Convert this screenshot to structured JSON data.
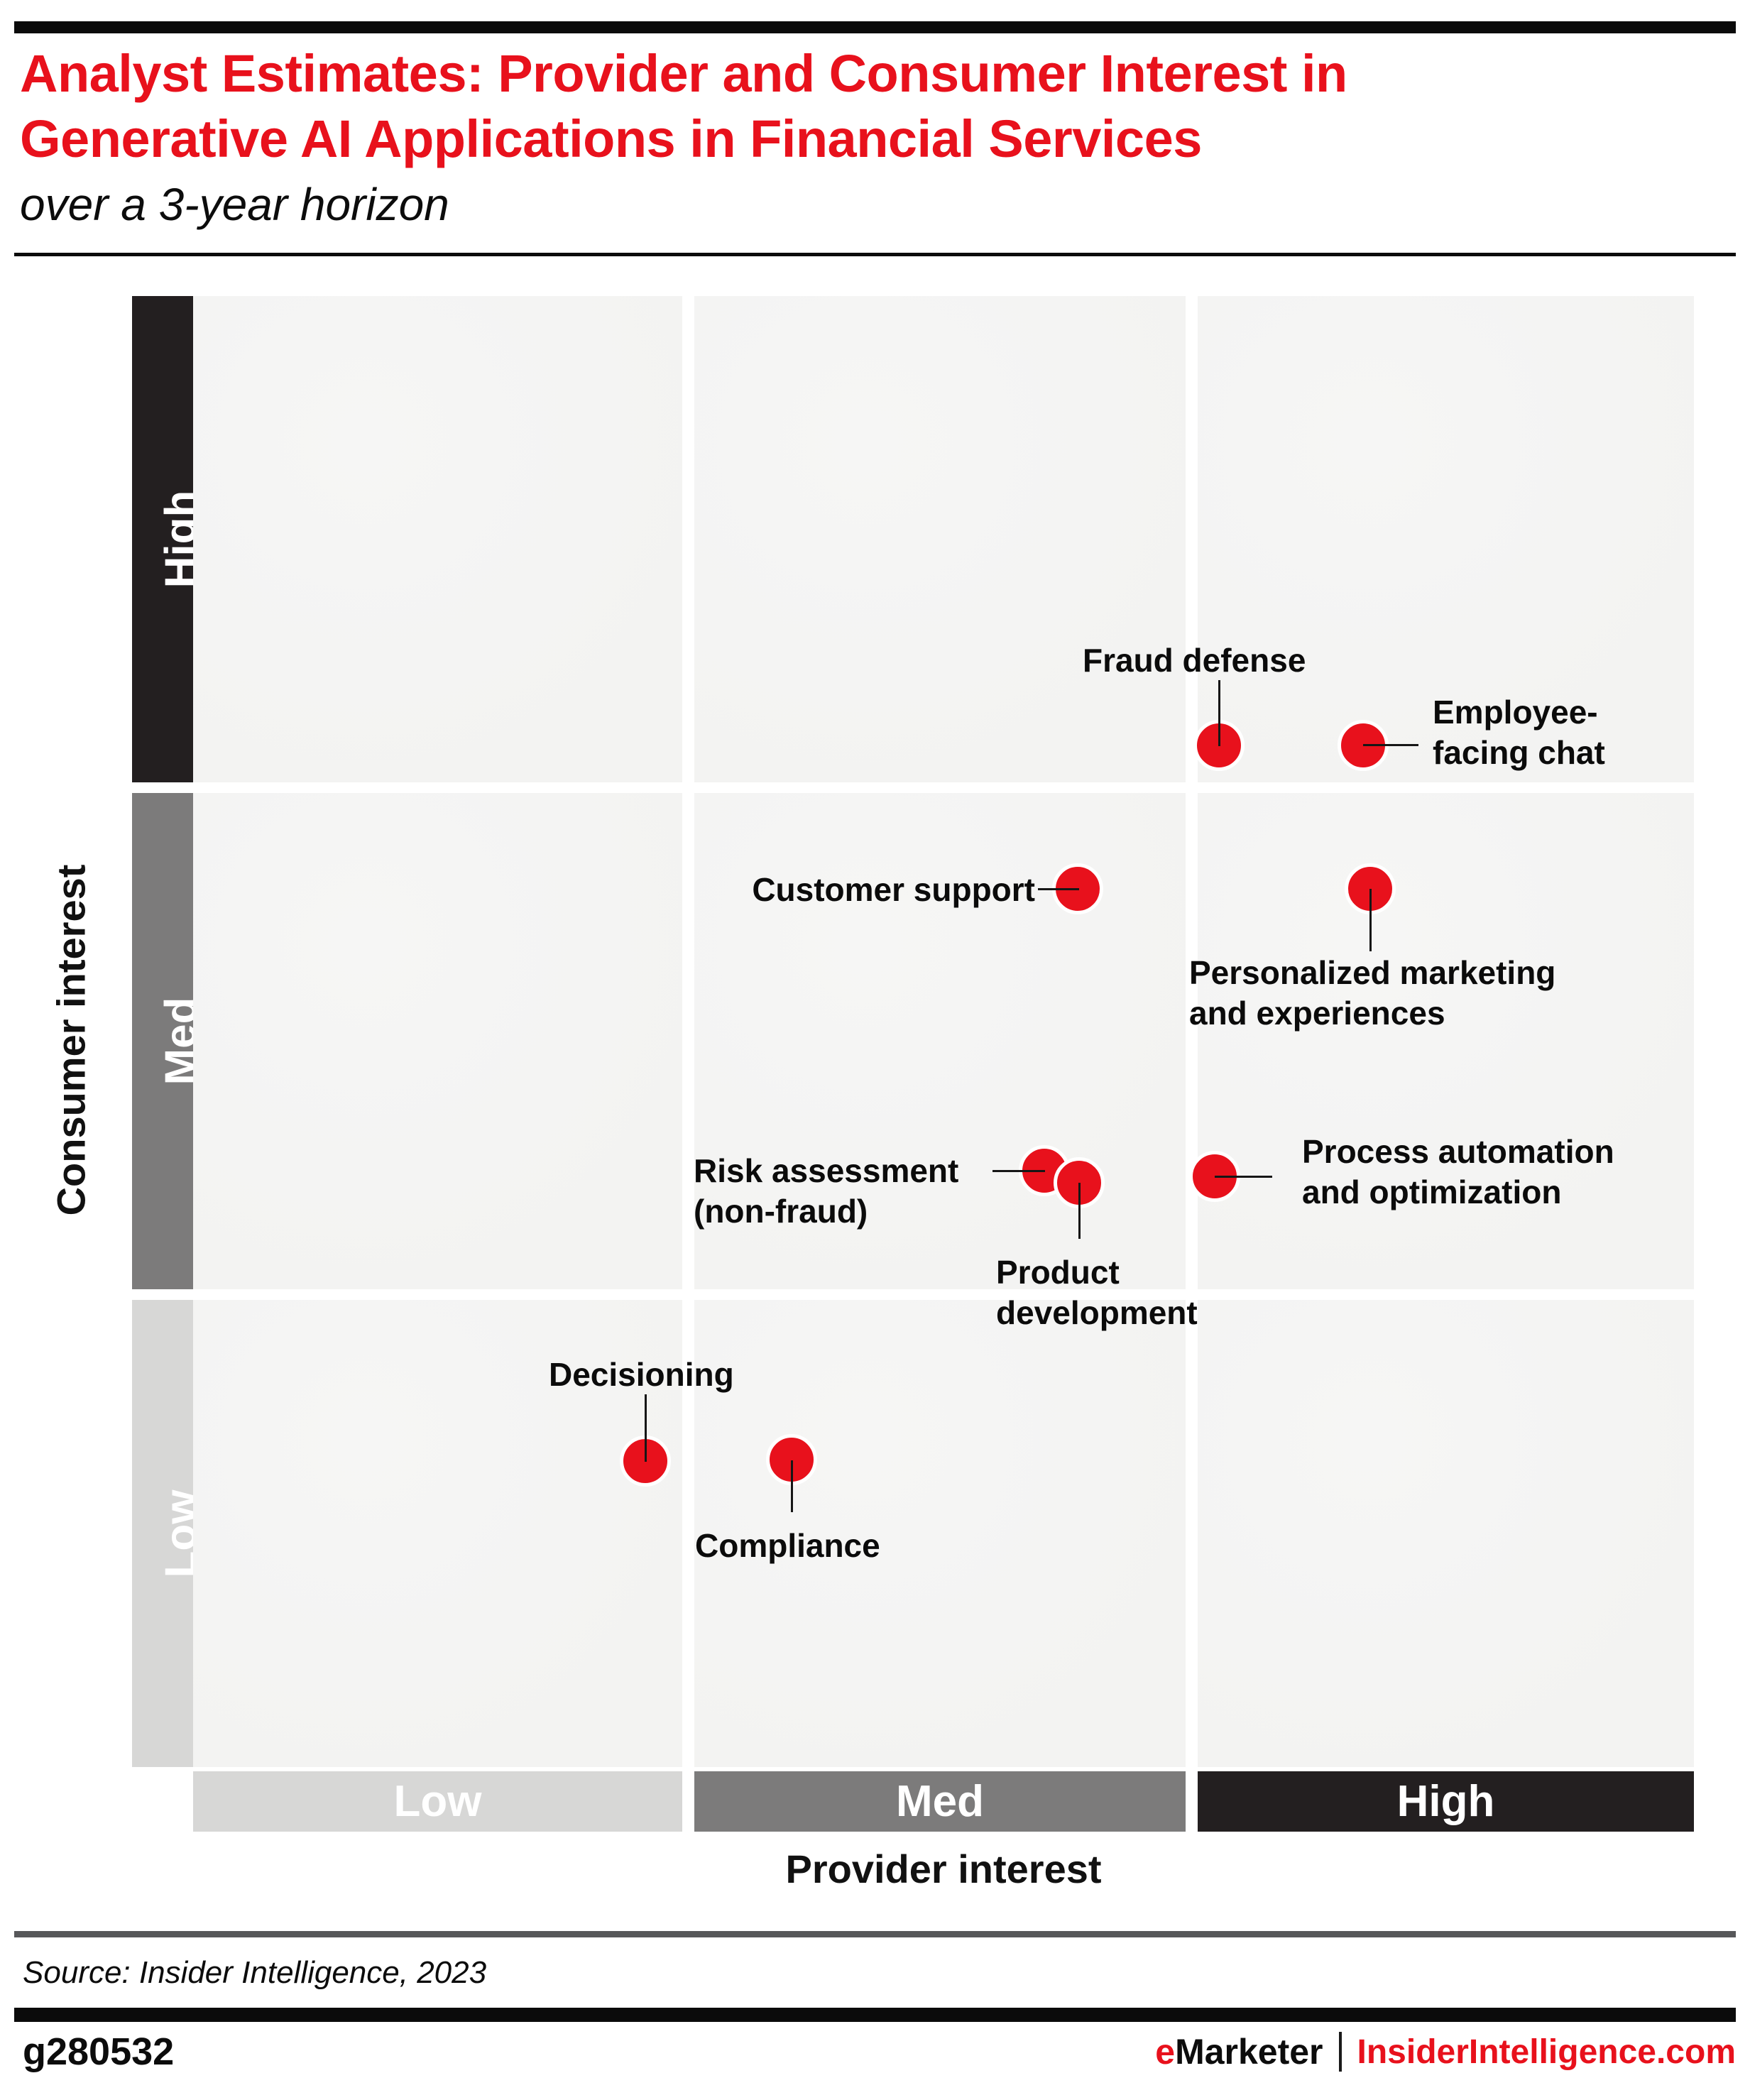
{
  "header": {
    "title_line1": "Analyst Estimates: Provider and Consumer Interest in",
    "title_line2": "Generative AI Applications in Financial Services",
    "subtitle": "over a 3-year horizon"
  },
  "axes": {
    "consumer": {
      "title": "Consumer interest",
      "bands_top_to_bottom": [
        "High",
        "Med",
        "Low"
      ]
    },
    "provider": {
      "title": "Provider interest",
      "bands_left_to_right": [
        "Low",
        "Med",
        "High"
      ]
    }
  },
  "footer": {
    "source": "Source: Insider Intelligence, 2023",
    "chart_id": "g280532",
    "brand_e": "e",
    "brand_rest": "Marketer",
    "site": "InsiderIntelligence.com"
  },
  "colors": {
    "accent_red": "#e8111c",
    "band_high": "#231f20",
    "band_med": "#7c7b7b",
    "band_low": "#d7d7d6",
    "cell_background": "#f4f3f2"
  },
  "chart_data": {
    "type": "scatter",
    "title": "Analyst Estimates: Provider and Consumer Interest in Generative AI Applications in Financial Services",
    "subtitle": "over a 3-year horizon",
    "xlabel": "Provider interest",
    "ylabel": "Consumer interest",
    "x_bands": [
      "Low",
      "Med",
      "High"
    ],
    "y_bands": [
      "Low",
      "Med",
      "High"
    ],
    "legend": "none",
    "grid": "3x3 quadrant matrix, white gaps between cells",
    "points": [
      {
        "id": "fraud-defense",
        "label": "Fraud defense",
        "label_lines": [
          "Fraud defense"
        ],
        "provider_interest": "High",
        "consumer_interest": "High",
        "x": 0.6835,
        "y": 0.3055
      },
      {
        "id": "employee-facing-chat",
        "label": "Employee-facing chat",
        "label_lines": [
          "Employee-",
          "facing chat"
        ],
        "provider_interest": "High",
        "consumer_interest": "High",
        "x": 0.7796,
        "y": 0.3055
      },
      {
        "id": "customer-support",
        "label": "Customer support",
        "label_lines": [
          "Customer support"
        ],
        "provider_interest": "Med",
        "consumer_interest": "Med",
        "x": 0.5894,
        "y": 0.403
      },
      {
        "id": "personalized-marketing",
        "label": "Personalized marketing and experiences",
        "label_lines": [
          "Personalized marketing",
          "and experiences"
        ],
        "provider_interest": "High",
        "consumer_interest": "Med",
        "x": 0.7843,
        "y": 0.403
      },
      {
        "id": "risk-assessment",
        "label": "Risk assessment (non-fraud)",
        "label_lines": [
          "Risk assessment",
          "(non-fraud)"
        ],
        "provider_interest": "Med",
        "consumer_interest": "Med",
        "x": 0.5671,
        "y": 0.5946
      },
      {
        "id": "product-development",
        "label": "Product development",
        "label_lines": [
          "Product",
          "development"
        ],
        "provider_interest": "Med",
        "consumer_interest": "Med",
        "x": 0.5903,
        "y": 0.6028
      },
      {
        "id": "process-automation",
        "label": "Process automation and optimization",
        "label_lines": [
          "Process automation",
          "and optimization"
        ],
        "provider_interest": "High",
        "consumer_interest": "Med",
        "x": 0.6807,
        "y": 0.5985
      },
      {
        "id": "decisioning",
        "label": "Decisioning",
        "label_lines": [
          "Decisioning"
        ],
        "provider_interest": "Low",
        "consumer_interest": "Low",
        "x": 0.3013,
        "y": 0.792
      },
      {
        "id": "compliance",
        "label": "Compliance",
        "label_lines": [
          "Compliance"
        ],
        "provider_interest": "Med",
        "consumer_interest": "Low",
        "x": 0.3988,
        "y": 0.791
      }
    ]
  }
}
